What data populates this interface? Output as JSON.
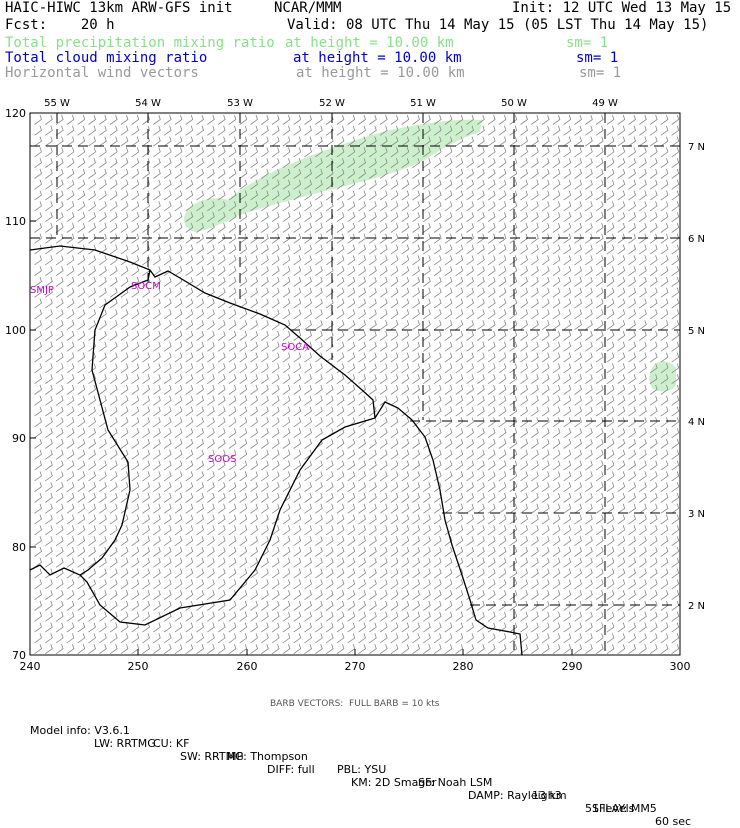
{
  "header": {
    "title": "HAIC-HIWC 13km ARW-GFS init",
    "org": "NCAR/MMM",
    "init": "Init: 12 UTC Wed 13 May 15",
    "fcst": "Fcst:    20 h",
    "valid": "Valid: 08 UTC Thu 14 May 15 (05 LST Thu 14 May 15)"
  },
  "fields": [
    {
      "name": "Total precipitation mixing ratio",
      "height": "at height = 10.00 km",
      "sm": "sm= 1",
      "color": "#88e088"
    },
    {
      "name": "Total cloud mixing ratio",
      "height": "at height = 10.00 km",
      "sm": "sm= 1",
      "color": "#0000cc"
    },
    {
      "name": "Horizontal wind vectors",
      "height": "at height = 10.00 km",
      "sm": "sm= 1",
      "color": "#999999"
    }
  ],
  "axes": {
    "left_ticks": [
      "120",
      "110",
      "100",
      "90",
      "80",
      "70"
    ],
    "bottom_ticks": [
      "240",
      "250",
      "260",
      "270",
      "280",
      "290",
      "300"
    ],
    "top_longitudes": [
      "55 W",
      "54 W",
      "53 W",
      "52 W",
      "51 W",
      "50 W",
      "49 W"
    ],
    "right_latitudes": [
      "7 N",
      "6 N",
      "5 N",
      "4 N",
      "3 N",
      "2 N"
    ]
  },
  "stations": [
    "SMJP",
    "SOCM",
    "SOCA",
    "SOOS"
  ],
  "colors": {
    "precip_fill": "#ccf0cc",
    "coast": "#000000",
    "barb": "#888888",
    "station": "#cc00cc"
  },
  "footer": {
    "barb_note": "BARB VECTORS:  FULL BARB = 10 kts",
    "line1": [
      "Model info: V3.6.1",
      "CU: KF",
      "MP: Thompson",
      "PBL: YSU",
      "SF: Noah LSM",
      "13 km",
      "51 levels",
      "60 sec"
    ],
    "line2": [
      "LW: RRTMG",
      "SW: RRTMG",
      "DIFF: full",
      "KM: 2D Smagor",
      "DAMP: Rayleigh3",
      "SFLAY: MM5"
    ]
  }
}
